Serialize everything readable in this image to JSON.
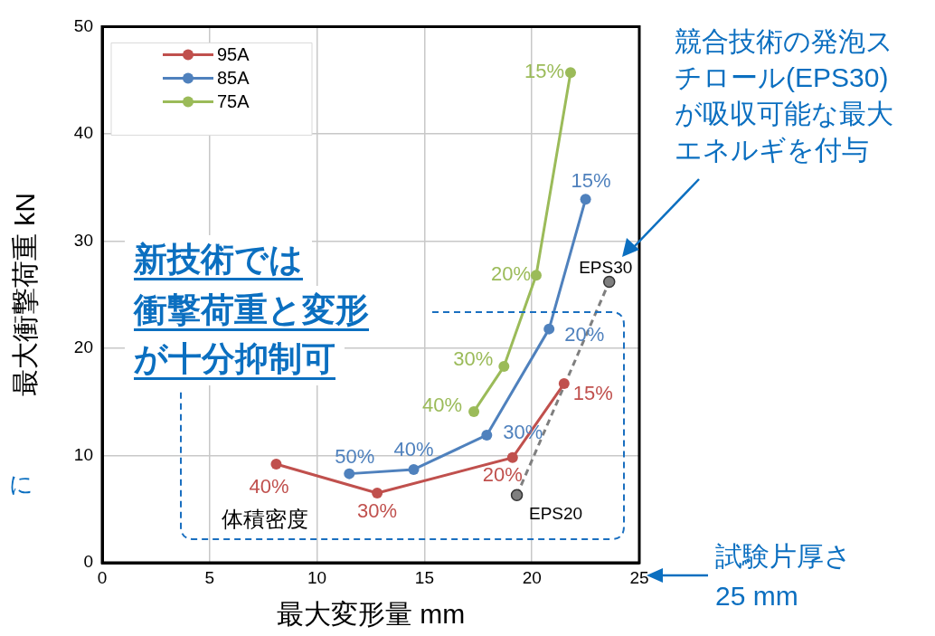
{
  "chart_data": {
    "type": "line",
    "xlabel": "最大変形量 mm",
    "ylabel": "最大衝撃荷重 kN",
    "xlim": [
      0,
      25
    ],
    "xticks": [
      0,
      5,
      10,
      15,
      20,
      25
    ],
    "ylim": [
      0,
      50
    ],
    "yticks": [
      0,
      10,
      20,
      30,
      40,
      50
    ],
    "grid": true,
    "legend": "top left",
    "marker": "circle",
    "series": [
      {
        "name": "95A",
        "color": "#c0504d",
        "x": [
          8.1,
          12.8,
          19.1,
          21.5
        ],
        "values": [
          9.2,
          6.5,
          9.8,
          16.7
        ]
      },
      {
        "name": "85A",
        "color": "#4f81bd",
        "x": [
          11.5,
          14.5,
          17.9,
          20.8,
          22.5
        ],
        "values": [
          8.3,
          8.7,
          11.9,
          21.8,
          33.9
        ]
      },
      {
        "name": "75A",
        "color": "#9bbb59",
        "x": [
          17.3,
          18.7,
          20.2,
          21.8
        ],
        "values": [
          14.1,
          18.3,
          26.8,
          45.7
        ]
      },
      {
        "color": "#7f7f7f",
        "line_style": "dashed",
        "x": [
          19.3,
          23.6
        ],
        "values": [
          6.3,
          26.2
        ]
      }
    ],
    "annotations": [
      {
        "text": "40%",
        "x": 8.1,
        "y": 9.2
      },
      {
        "text": "30%",
        "x": 12.8,
        "y": 6.5
      },
      {
        "text": "20%",
        "x": 19.1,
        "y": 9.8
      },
      {
        "text": "15%",
        "x": 21.5,
        "y": 16.7
      },
      {
        "text": "50%",
        "x": 11.5,
        "y": 8.3
      },
      {
        "text": "40%",
        "x": 14.5,
        "y": 8.7
      },
      {
        "text": "30%",
        "x": 17.9,
        "y": 11.9
      },
      {
        "text": "20%",
        "x": 20.8,
        "y": 21.8
      },
      {
        "text": "15%",
        "x": 22.5,
        "y": 33.9
      },
      {
        "text": "40%",
        "x": 17.3,
        "y": 14.1
      },
      {
        "text": "30%",
        "x": 18.7,
        "y": 18.3
      },
      {
        "text": "20%",
        "x": 20.2,
        "y": 26.8
      },
      {
        "text": "15%",
        "x": 21.8,
        "y": 45.7
      },
      {
        "text": "EPS30",
        "x": 23.6,
        "y": 26.2
      },
      {
        "text": "EPS20",
        "x": 19.3,
        "y": 6.3
      },
      "新技術では",
      "衝撃荷重と変形",
      "が十分抑制可",
      "体積密度",
      "競合技術の発泡ス",
      "チロール(EPS30)",
      "が吸収可能な最大",
      "エネルギを付与",
      "試験片厚さ\n25 mm",
      "に"
    ]
  }
}
